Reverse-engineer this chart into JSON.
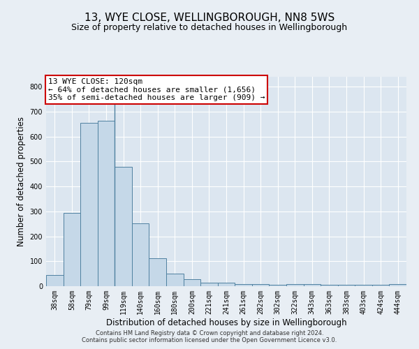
{
  "title1": "13, WYE CLOSE, WELLINGBOROUGH, NN8 5WS",
  "title2": "Size of property relative to detached houses in Wellingborough",
  "xlabel": "Distribution of detached houses by size in Wellingborough",
  "ylabel": "Number of detached properties",
  "footer1": "Contains HM Land Registry data © Crown copyright and database right 2024.",
  "footer2": "Contains public sector information licensed under the Open Government Licence v3.0.",
  "categories": [
    "38sqm",
    "58sqm",
    "79sqm",
    "99sqm",
    "119sqm",
    "140sqm",
    "160sqm",
    "180sqm",
    "200sqm",
    "221sqm",
    "241sqm",
    "261sqm",
    "282sqm",
    "302sqm",
    "322sqm",
    "343sqm",
    "363sqm",
    "383sqm",
    "403sqm",
    "424sqm",
    "444sqm"
  ],
  "values": [
    45,
    295,
    655,
    665,
    480,
    252,
    113,
    50,
    27,
    15,
    15,
    8,
    8,
    5,
    8,
    8,
    5,
    5,
    5,
    5,
    8
  ],
  "bar_color": "#c5d8e8",
  "bar_edge_color": "#4f81a0",
  "property_line_x": 3.5,
  "annotation_line1": "13 WYE CLOSE: 120sqm",
  "annotation_line2": "← 64% of detached houses are smaller (1,656)",
  "annotation_line3": "35% of semi-detached houses are larger (909) →",
  "annotation_box_color": "#ffffff",
  "annotation_box_edge_color": "#cc0000",
  "ylim": [
    0,
    840
  ],
  "yticks": [
    0,
    100,
    200,
    300,
    400,
    500,
    600,
    700,
    800
  ],
  "bg_color": "#e8eef4",
  "plot_bg_color": "#dce6f0",
  "grid_color": "#ffffff",
  "title_fontsize": 11,
  "subtitle_fontsize": 9,
  "axis_label_fontsize": 8.5,
  "tick_fontsize": 7,
  "annotation_fontsize": 8,
  "footer_fontsize": 6
}
